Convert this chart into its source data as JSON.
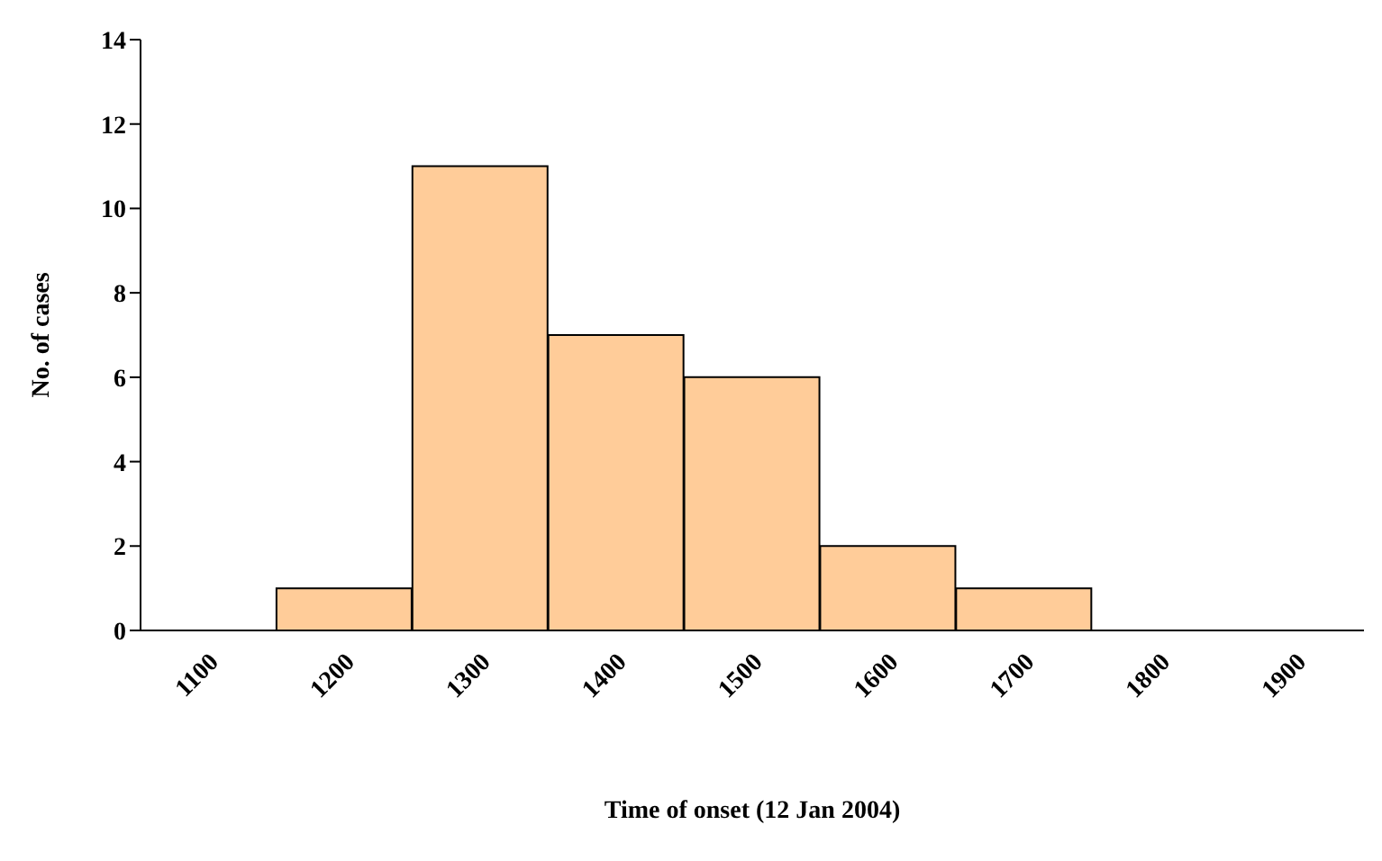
{
  "chart_data": {
    "type": "bar",
    "xlabel": "Time of onset (12 Jan 2004)",
    "ylabel": "No. of cases",
    "categories": [
      "1100",
      "1200",
      "1300",
      "1400",
      "1500",
      "1600",
      "1700",
      "1800",
      "1900"
    ],
    "values": [
      0,
      1,
      11,
      7,
      6,
      2,
      1,
      0,
      0
    ],
    "color": "#ffcc99",
    "ylim": [
      0,
      14
    ],
    "yticks": [
      0,
      2,
      4,
      6,
      8,
      10,
      12,
      14
    ],
    "grid": false,
    "legend": false
  }
}
